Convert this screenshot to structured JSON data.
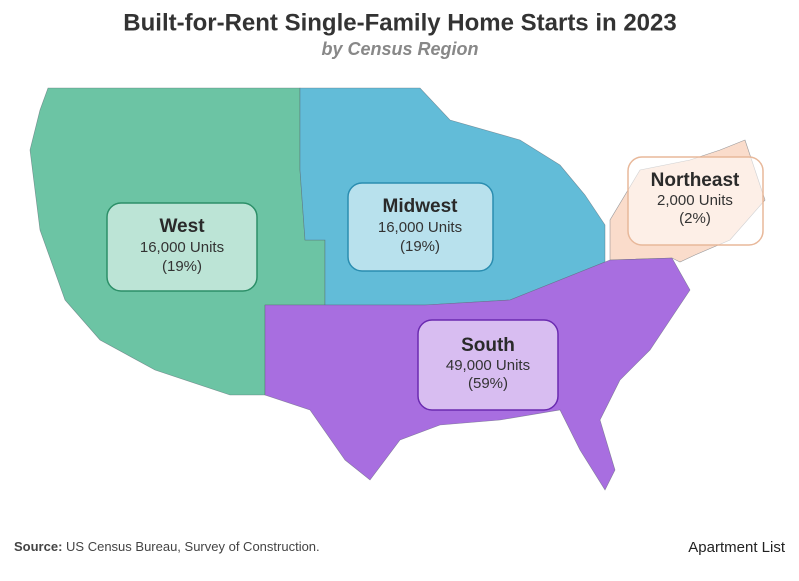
{
  "header": {
    "title": "Built-for-Rent Single-Family Home Starts in 2023",
    "subtitle": "by Census Region"
  },
  "regions": [
    {
      "name": "West",
      "units": "16,000 Units",
      "share": "(19%)"
    },
    {
      "name": "Midwest",
      "units": "16,000 Units",
      "share": "(19%)"
    },
    {
      "name": "Northeast",
      "units": "2,000 Units",
      "share": "(2%)"
    },
    {
      "name": "South",
      "units": "49,000 Units",
      "share": "(59%)"
    }
  ],
  "footer": {
    "source_label": "Source:",
    "source": "US Census Bureau, Survey of Construction.",
    "logo": "Apartment List"
  }
}
